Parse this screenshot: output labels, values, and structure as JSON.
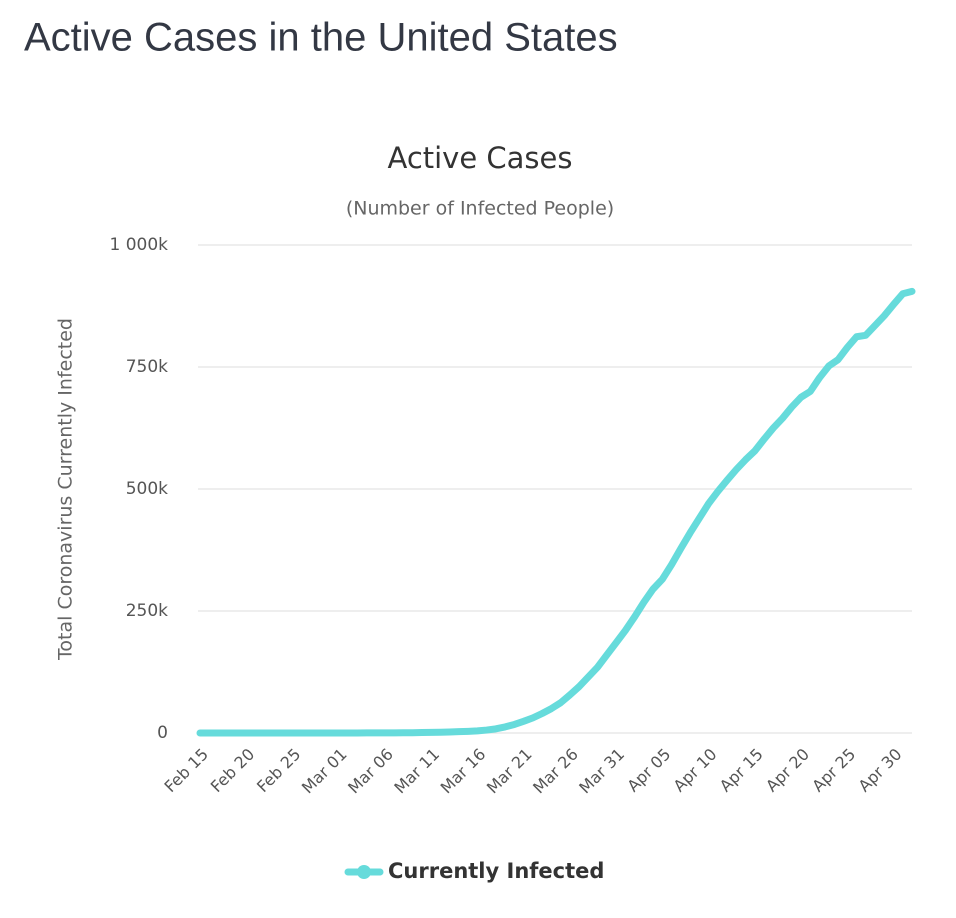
{
  "heading": "Active Cases in the United States",
  "chart_data": {
    "type": "line",
    "title": "Active Cases",
    "subtitle": "(Number of Infected People)",
    "y_label": "Total Coronavirus Currently Infected",
    "categories": [
      "Feb 15",
      null,
      null,
      null,
      null,
      "Feb 20",
      null,
      null,
      null,
      null,
      "Feb 25",
      null,
      null,
      null,
      null,
      "Mar 01",
      null,
      null,
      null,
      null,
      "Mar 06",
      null,
      null,
      null,
      null,
      "Mar 11",
      null,
      null,
      null,
      null,
      "Mar 16",
      null,
      null,
      null,
      null,
      "Mar 21",
      null,
      null,
      null,
      null,
      "Mar 26",
      null,
      null,
      null,
      null,
      "Mar 31",
      null,
      null,
      null,
      null,
      "Apr 05",
      null,
      null,
      null,
      null,
      "Apr 10",
      null,
      null,
      null,
      null,
      "Apr 15",
      null,
      null,
      null,
      null,
      "Apr 20",
      null,
      null,
      null,
      null,
      "Apr 25",
      null,
      null,
      null,
      null,
      "Apr 30",
      null,
      null
    ],
    "series": [
      {
        "name": "Currently Infected",
        "color": "#66dbdb",
        "values": [
          12,
          12,
          12,
          12,
          14,
          15,
          18,
          22,
          35,
          40,
          45,
          50,
          55,
          60,
          62,
          70,
          80,
          100,
          130,
          180,
          250,
          350,
          450,
          550,
          900,
          1200,
          1600,
          2100,
          2700,
          3400,
          4300,
          6000,
          8500,
          12500,
          17500,
          24000,
          31000,
          40000,
          50000,
          62000,
          78000,
          95000,
          115000,
          135000,
          160000,
          185000,
          210000,
          238000,
          268000,
          295000,
          315000,
          345000,
          378000,
          410000,
          440000,
          470000,
          495000,
          518000,
          540000,
          560000,
          578000,
          602000,
          625000,
          645000,
          668000,
          688000,
          700000,
          728000,
          752000,
          765000,
          790000,
          812000,
          815000,
          835000,
          855000,
          878000,
          900000,
          905000
        ]
      }
    ],
    "ylim": [
      0,
      1000000
    ],
    "yticks": [
      0,
      {
        "value": 250000,
        "label": "250k"
      },
      {
        "value": 500000,
        "label": "500k"
      },
      {
        "value": 750000,
        "label": "750k"
      },
      {
        "value": 1000000,
        "label": "1 000k"
      }
    ],
    "grid": true
  }
}
